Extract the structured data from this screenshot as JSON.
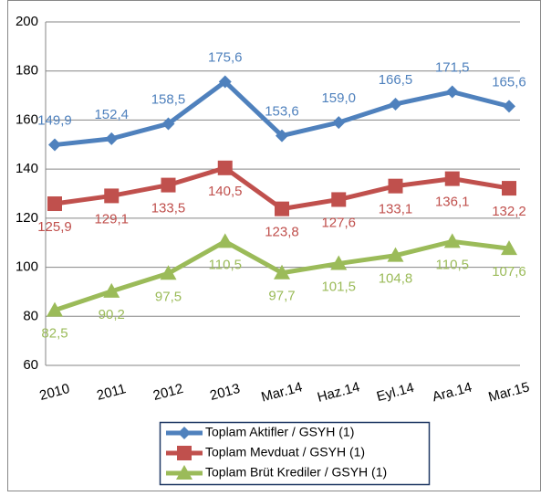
{
  "chart_data": {
    "type": "line",
    "categories": [
      "2010",
      "2011",
      "2012",
      "2013",
      "Mar.14",
      "Haz.14",
      "Eyl.14",
      "Ara.14",
      "Mar.15"
    ],
    "series": [
      {
        "name": "Toplam Aktifler / GSYH (1)",
        "color": "#4f81bd",
        "marker": "diamond",
        "label_position": "above",
        "values": [
          149.9,
          152.4,
          158.5,
          175.6,
          153.6,
          159.0,
          166.5,
          171.5,
          165.6
        ],
        "value_labels": [
          "149,9",
          "152,4",
          "158,5",
          "175,6",
          "153,6",
          "159,0",
          "166,5",
          "171,5",
          "165,6"
        ]
      },
      {
        "name": "Toplam Mevduat / GSYH (1)",
        "color": "#c0504d",
        "marker": "square",
        "label_position": "below",
        "values": [
          125.9,
          129.1,
          133.5,
          140.5,
          123.8,
          127.6,
          133.1,
          136.1,
          132.2
        ],
        "value_labels": [
          "125,9",
          "129,1",
          "133,5",
          "140,5",
          "123,8",
          "127,6",
          "133,1",
          "136,1",
          "132,2"
        ]
      },
      {
        "name": "Toplam Brüt Krediler / GSYH (1)",
        "color": "#9bbb59",
        "marker": "triangle",
        "label_position": "below",
        "values": [
          82.5,
          90.2,
          97.5,
          110.5,
          97.7,
          101.5,
          104.8,
          110.5,
          107.6
        ],
        "value_labels": [
          "82,5",
          "90,2",
          "97,5",
          "110,5",
          "97,7",
          "101,5",
          "104,8",
          "110,5",
          "107,6"
        ]
      }
    ],
    "ylim": [
      60,
      200
    ],
    "yticks": [
      60,
      80,
      100,
      120,
      140,
      160,
      180,
      200
    ],
    "grid": true,
    "legend": "bottom"
  }
}
